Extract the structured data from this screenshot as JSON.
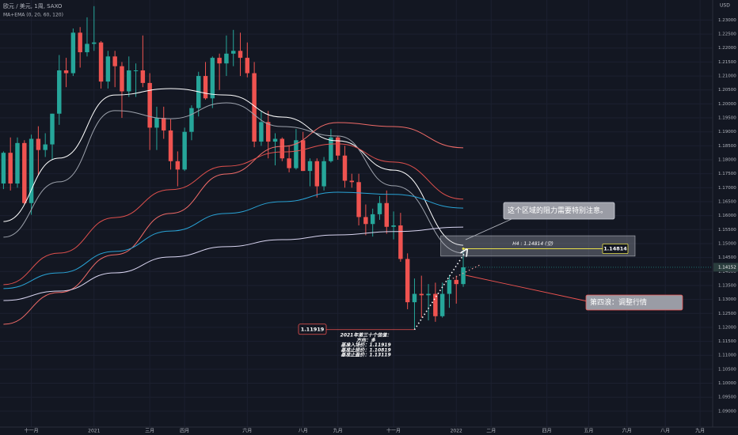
{
  "chart_data": {
    "type": "candlestick",
    "title": "欧元 / 美元, 1周, SAXO",
    "subtitle": "MA+EMA (0, 20, 60, 120)",
    "currency": "USD",
    "up_color": "#26a69a",
    "down_color": "#ef5350",
    "grid": true,
    "open": [
      1.1715,
      1.1825,
      1.1715,
      1.186,
      1.1645,
      1.1875,
      1.1835,
      1.1855,
      1.1965,
      1.212,
      1.211,
      1.2255,
      1.2185,
      1.2215,
      1.222,
      1.208,
      1.217,
      1.2135,
      1.2045,
      1.212,
      1.212,
      1.2075,
      1.1915,
      1.195,
      1.1905,
      1.1795,
      1.1765,
      1.19,
      1.1985,
      1.21,
      1.202,
      1.2165,
      1.2145,
      1.218,
      1.219,
      1.2165,
      1.211,
      1.1865,
      1.1935,
      1.1865,
      1.1875,
      1.1805,
      1.177,
      1.187,
      1.176,
      1.1795,
      1.1705,
      1.1795,
      1.188,
      1.1815,
      1.1725,
      1.172,
      1.1595,
      1.157,
      1.1605,
      1.1645,
      1.156,
      1.1565,
      1.1445,
      1.129,
      1.132,
      1.1315,
      1.132,
      1.124,
      1.132,
      1.137,
      1.1355
    ],
    "high": [
      1.183,
      1.188,
      1.188,
      1.187,
      1.189,
      1.192,
      1.1895,
      1.1965,
      1.2175,
      1.2165,
      1.227,
      1.2275,
      1.231,
      1.235,
      1.2225,
      1.219,
      1.219,
      1.215,
      1.217,
      1.2145,
      1.2245,
      1.211,
      1.199,
      1.199,
      1.1945,
      1.183,
      1.1915,
      1.1995,
      1.2115,
      1.215,
      1.217,
      1.218,
      1.2245,
      1.2265,
      1.2255,
      1.222,
      1.215,
      1.1975,
      1.1975,
      1.1895,
      1.188,
      1.185,
      1.191,
      1.19,
      1.1805,
      1.1805,
      1.181,
      1.191,
      1.1885,
      1.185,
      1.175,
      1.175,
      1.164,
      1.1625,
      1.167,
      1.169,
      1.1615,
      1.161,
      1.1465,
      1.1375,
      1.1385,
      1.1355,
      1.136,
      1.136,
      1.1385,
      1.1385,
      1.1485
    ],
    "low": [
      1.1695,
      1.169,
      1.17,
      1.164,
      1.1603,
      1.1745,
      1.181,
      1.18,
      1.1925,
      1.206,
      1.21,
      1.213,
      1.217,
      1.219,
      1.2055,
      1.2055,
      1.206,
      1.195,
      1.2025,
      1.2025,
      1.206,
      1.1835,
      1.1835,
      1.1875,
      1.1765,
      1.1705,
      1.176,
      1.187,
      1.1955,
      1.2015,
      1.1985,
      1.205,
      1.21,
      1.2135,
      1.21,
      1.2095,
      1.1845,
      1.185,
      1.1805,
      1.178,
      1.1795,
      1.1755,
      1.1765,
      1.176,
      1.1705,
      1.1665,
      1.169,
      1.179,
      1.18,
      1.17,
      1.17,
      1.1565,
      1.153,
      1.1525,
      1.1585,
      1.1535,
      1.1515,
      1.1435,
      1.1265,
      1.1192,
      1.1235,
      1.1225,
      1.122,
      1.1235,
      1.127,
      1.1285,
      1.1345
    ],
    "close": [
      1.1825,
      1.1715,
      1.186,
      1.1645,
      1.1875,
      1.1835,
      1.1855,
      1.1965,
      1.212,
      1.211,
      1.2255,
      1.2185,
      1.2215,
      1.222,
      1.208,
      1.217,
      1.2135,
      1.2045,
      1.212,
      1.212,
      1.2075,
      1.1915,
      1.195,
      1.1905,
      1.1795,
      1.1765,
      1.19,
      1.1985,
      1.21,
      1.202,
      1.2165,
      1.2145,
      1.218,
      1.219,
      1.2165,
      1.211,
      1.1865,
      1.1935,
      1.1865,
      1.1875,
      1.1805,
      1.177,
      1.187,
      1.176,
      1.1795,
      1.1705,
      1.1795,
      1.188,
      1.1815,
      1.1725,
      1.172,
      1.1595,
      1.157,
      1.1605,
      1.1645,
      1.156,
      1.1565,
      1.1445,
      1.129,
      1.132,
      1.1315,
      1.132,
      1.124,
      1.132,
      1.137,
      1.1355,
      1.1415
    ],
    "xlim": [
      -0.5,
      101.8
    ],
    "xticks": [
      {
        "value": 4,
        "label": "十一月"
      },
      {
        "value": 13,
        "label": "2021"
      },
      {
        "value": 21,
        "label": "三月"
      },
      {
        "value": 26,
        "label": "四月"
      },
      {
        "value": 35,
        "label": "六月"
      },
      {
        "value": 43,
        "label": "八月"
      },
      {
        "value": 48,
        "label": "九月"
      },
      {
        "value": 56,
        "label": "十一月"
      },
      {
        "value": 65,
        "label": "2022"
      },
      {
        "value": 70,
        "label": "二月"
      },
      {
        "value": 78,
        "label": "四月"
      },
      {
        "value": 84,
        "label": "五月"
      },
      {
        "value": 89.5,
        "label": "六月"
      },
      {
        "value": 95,
        "label": "八月"
      },
      {
        "value": 100,
        "label": "九月"
      }
    ],
    "ylim": [
      1.0843,
      1.2372
    ],
    "yticks": [
      {
        "value": 1.09,
        "label": "1.09000"
      },
      {
        "value": 1.095,
        "label": "1.09500"
      },
      {
        "value": 1.1,
        "label": "1.10000"
      },
      {
        "value": 1.105,
        "label": "1.10500"
      },
      {
        "value": 1.11,
        "label": "1.11000"
      },
      {
        "value": 1.115,
        "label": "1.11500"
      },
      {
        "value": 1.12,
        "label": "1.12000"
      },
      {
        "value": 1.125,
        "label": "1.12500"
      },
      {
        "value": 1.13,
        "label": "1.13000"
      },
      {
        "value": 1.135,
        "label": "1.13500"
      },
      {
        "value": 1.14,
        "label": "1.14000"
      },
      {
        "value": 1.145,
        "label": "1.14500"
      },
      {
        "value": 1.15,
        "label": "1.15000"
      },
      {
        "value": 1.155,
        "label": "1.15500"
      },
      {
        "value": 1.16,
        "label": "1.16000"
      },
      {
        "value": 1.165,
        "label": "1.16500"
      },
      {
        "value": 1.17,
        "label": "1.17000"
      },
      {
        "value": 1.175,
        "label": "1.17500"
      },
      {
        "value": 1.18,
        "label": "1.18000"
      },
      {
        "value": 1.185,
        "label": "1.18500"
      },
      {
        "value": 1.19,
        "label": "1.19000"
      },
      {
        "value": 1.195,
        "label": "1.19500"
      },
      {
        "value": 1.2,
        "label": "1.20000"
      },
      {
        "value": 1.205,
        "label": "1.20500"
      },
      {
        "value": 1.21,
        "label": "1.21000"
      },
      {
        "value": 1.215,
        "label": "1.21500"
      },
      {
        "value": 1.22,
        "label": "1.22000"
      },
      {
        "value": 1.225,
        "label": "1.22500"
      },
      {
        "value": 1.23,
        "label": "1.23000"
      }
    ],
    "lines": [
      {
        "color": "#ffffff",
        "x": [
          0,
          8,
          16,
          24,
          32,
          40,
          48,
          56,
          66
        ],
        "values": [
          1.1579,
          1.1806,
          1.2032,
          1.2055,
          1.2032,
          1.1953,
          1.1868,
          1.1763,
          1.1494
        ]
      },
      {
        "color": "#9ea3ad",
        "x": [
          0,
          8,
          16,
          24,
          32,
          40,
          48,
          56,
          66
        ],
        "values": [
          1.1523,
          1.1721,
          1.1976,
          1.1947,
          1.2004,
          1.1919,
          1.1885,
          1.1707,
          1.1466
        ]
      },
      {
        "color": "#f06b68",
        "x": [
          0,
          8,
          16,
          24,
          32,
          40,
          48,
          56,
          66
        ],
        "values": [
          1.1211,
          1.1325,
          1.146,
          1.1608,
          1.1749,
          1.1848,
          1.1933,
          1.1919,
          1.1843
        ]
      },
      {
        "color": "#e0504d",
        "x": [
          0,
          8,
          16,
          24,
          32,
          40,
          48,
          56,
          66
        ],
        "values": [
          1.1353,
          1.1466,
          1.1593,
          1.1693,
          1.1777,
          1.1828,
          1.1857,
          1.1792,
          1.1659
        ]
      },
      {
        "color": "#29a3d6",
        "x": [
          0,
          8,
          16,
          24,
          32,
          40,
          48,
          56,
          66
        ],
        "values": [
          1.1339,
          1.1395,
          1.1472,
          1.1545,
          1.1608,
          1.165,
          1.1684,
          1.1676,
          1.1627
        ]
      },
      {
        "color": "#d8d4f0",
        "x": [
          0,
          8,
          16,
          24,
          32,
          40,
          48,
          56,
          66
        ],
        "values": [
          1.1296,
          1.133,
          1.1395,
          1.1452,
          1.1489,
          1.1514,
          1.1531,
          1.1543,
          1.1559
        ]
      }
    ],
    "last_price": 1.14152,
    "zone": {
      "x": 63,
      "ylim": [
        1.1455,
        1.1528
      ]
    },
    "resistance": {
      "value": 1.14814,
      "label": "H4 : 1.14814 (空)",
      "x": [
        66,
        86
      ]
    },
    "low_marker": {
      "value": 1.11919,
      "x": 59
    },
    "callouts": [
      "这个区域的阻力需要特别注意。",
      "第四浪：调整行情"
    ],
    "trade_note": [
      "2021年第三十个信值：",
      "方向：多",
      "基准入场价：1.11919",
      "基准止损价：1.10819",
      "基准止盈价：1.13119"
    ]
  }
}
